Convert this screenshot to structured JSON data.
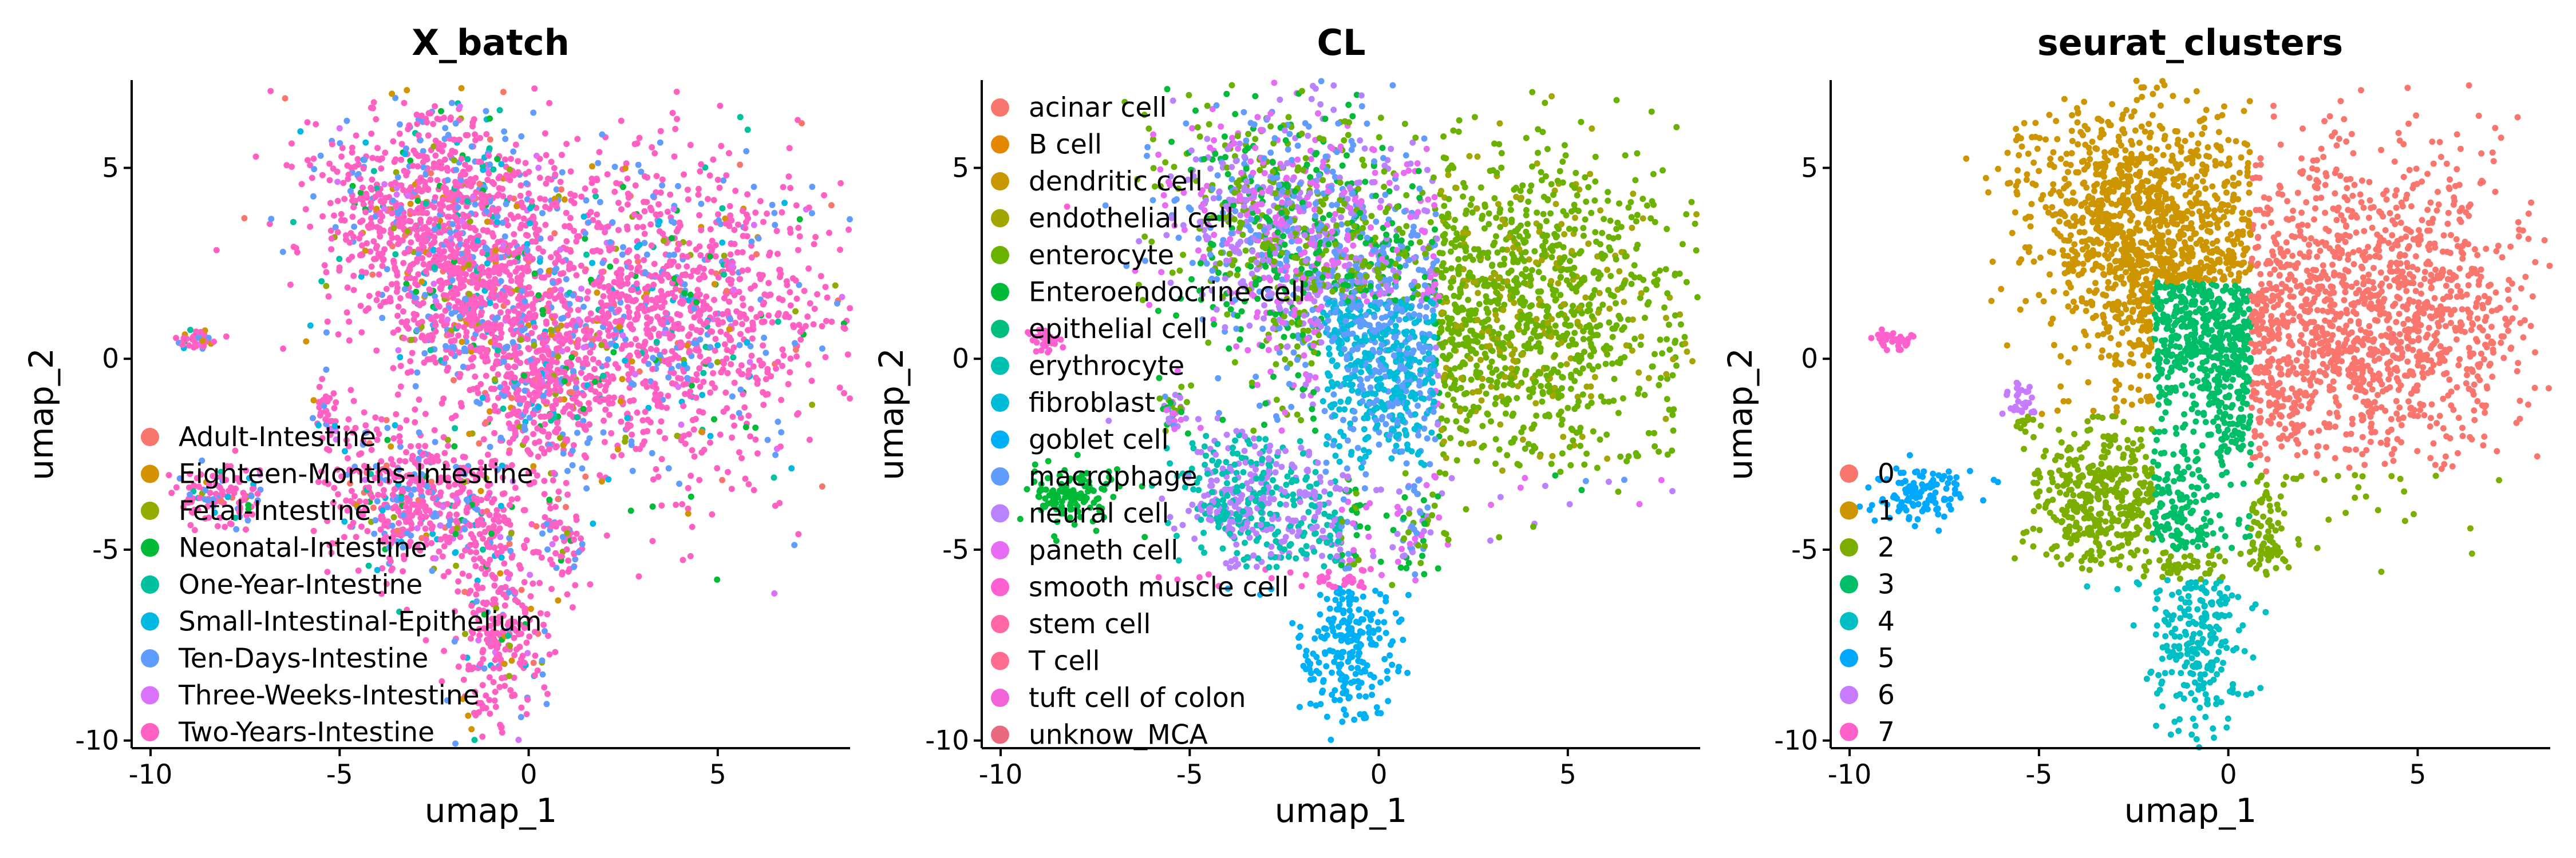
{
  "chart_data": [
    {
      "type": "scatter",
      "title": "X_batch",
      "xlabel": "umap_1",
      "ylabel": "umap_2",
      "xlim": [
        -10.5,
        8.5
      ],
      "ylim": [
        -10.2,
        7.3
      ],
      "xticks": [
        -10,
        -5,
        0,
        5
      ],
      "yticks": [
        -10,
        -5,
        0,
        5
      ],
      "grid": false,
      "legend_position": "left-inside",
      "series": [
        {
          "name": "Adult-Intestine",
          "color": "#F8766D"
        },
        {
          "name": "Eighteen-Months-Intestine",
          "color": "#D39200"
        },
        {
          "name": "Fetal-Intestine",
          "color": "#93AA00"
        },
        {
          "name": "Neonatal-Intestine",
          "color": "#00BA38"
        },
        {
          "name": "One-Year-Intestine",
          "color": "#00C19F"
        },
        {
          "name": "Small-Intestinal-Epithelium",
          "color": "#00B9E3"
        },
        {
          "name": "Ten-Days-Intestine",
          "color": "#619CFF"
        },
        {
          "name": "Three-Weeks-Intestine",
          "color": "#DB72FB"
        },
        {
          "name": "Two-Years-Intestine",
          "color": "#FF61C3"
        }
      ]
    },
    {
      "type": "scatter",
      "title": "CL",
      "xlabel": "umap_1",
      "ylabel": "umap_2",
      "xlim": [
        -10.5,
        8.5
      ],
      "ylim": [
        -10.2,
        7.3
      ],
      "xticks": [
        -10,
        -5,
        0,
        5
      ],
      "yticks": [
        -10,
        -5,
        0,
        5
      ],
      "grid": false,
      "legend_position": "top-left-inside",
      "series": [
        {
          "name": "acinar cell",
          "color": "#F8766D"
        },
        {
          "name": "B cell",
          "color": "#E58700"
        },
        {
          "name": "dendritic cell",
          "color": "#C99800"
        },
        {
          "name": "endothelial cell",
          "color": "#A3A500"
        },
        {
          "name": "enterocyte",
          "color": "#6BB100"
        },
        {
          "name": "Enteroendocrine cell",
          "color": "#00BA38"
        },
        {
          "name": "epithelial cell",
          "color": "#00BF7D"
        },
        {
          "name": "erythrocyte",
          "color": "#00C0AF"
        },
        {
          "name": "fibroblast",
          "color": "#00BCD8"
        },
        {
          "name": "goblet cell",
          "color": "#00B0F6"
        },
        {
          "name": "macrophage",
          "color": "#619CFF"
        },
        {
          "name": "neural cell",
          "color": "#B983FF"
        },
        {
          "name": "paneth cell",
          "color": "#E76BF3"
        },
        {
          "name": "smooth muscle cell",
          "color": "#FD61D1"
        },
        {
          "name": "stem cell",
          "color": "#FF67A4"
        },
        {
          "name": "T cell",
          "color": "#FF6C91"
        },
        {
          "name": "tuft cell of colon",
          "color": "#F263D8"
        },
        {
          "name": "unknow_MCA",
          "color": "#E9697E"
        }
      ]
    },
    {
      "type": "scatter",
      "title": "seurat_clusters",
      "xlabel": "umap_1",
      "ylabel": "umap_2",
      "xlim": [
        -10.5,
        8.5
      ],
      "ylim": [
        -10.2,
        7.3
      ],
      "xticks": [
        -10,
        -5,
        0,
        5
      ],
      "yticks": [
        -10,
        -5,
        0,
        5
      ],
      "grid": false,
      "legend_position": "left-inside",
      "series": [
        {
          "name": "0",
          "color": "#F8766D"
        },
        {
          "name": "1",
          "color": "#CD9600"
        },
        {
          "name": "2",
          "color": "#7CAE00"
        },
        {
          "name": "3",
          "color": "#00BE67"
        },
        {
          "name": "4",
          "color": "#00BFC4"
        },
        {
          "name": "5",
          "color": "#00A9FF"
        },
        {
          "name": "6",
          "color": "#C77CFF"
        },
        {
          "name": "7",
          "color": "#FF61CC"
        }
      ]
    }
  ]
}
